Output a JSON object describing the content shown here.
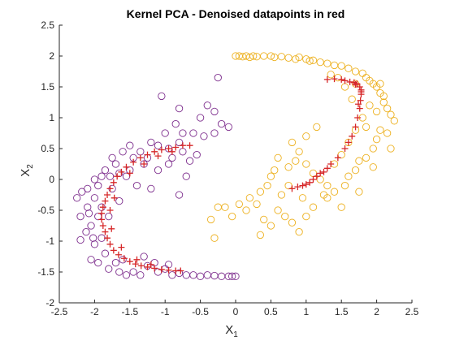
{
  "chart_data": {
    "type": "scatter",
    "title": "Kernel PCA - Denoised datapoints in red",
    "xlabel": {
      "base": "X",
      "sub": "1"
    },
    "ylabel": {
      "base": "X",
      "sub": "2"
    },
    "xlim": [
      -2.5,
      2.5
    ],
    "ylim": [
      -2,
      2.5
    ],
    "xticks": [
      -2.5,
      -2,
      -1.5,
      -1,
      -0.5,
      0,
      0.5,
      1,
      1.5,
      2,
      2.5
    ],
    "xtick_labels": [
      "-2.5",
      "-2",
      "-1.5",
      "-1",
      "-0.5",
      "0",
      "0.5",
      "1",
      "1.5",
      "2",
      "2.5"
    ],
    "yticks": [
      -2,
      -1.5,
      -1,
      -0.5,
      0,
      0.5,
      1,
      1.5,
      2,
      2.5
    ],
    "ytick_labels": [
      "-2",
      "-1.5",
      "-1",
      "-0.5",
      "0",
      "0.5",
      "1",
      "1.5",
      "2",
      "2.5"
    ],
    "grid": false,
    "series": [
      {
        "marker": "circle",
        "color": "#7E2F8E",
        "points": [
          [
            -2.25,
            -0.3
          ],
          [
            -2.18,
            -0.2
          ],
          [
            -2.1,
            -0.45
          ],
          [
            -2.2,
            -0.6
          ],
          [
            -2.05,
            -0.75
          ],
          [
            -2.12,
            -0.85
          ],
          [
            -2.2,
            -0.98
          ],
          [
            -1.95,
            -0.1
          ],
          [
            -2.0,
            -0.3
          ],
          [
            -1.9,
            0.05
          ],
          [
            -1.85,
            0.15
          ],
          [
            -1.75,
            0.35
          ],
          [
            -1.7,
            0.25
          ],
          [
            -1.6,
            0.45
          ],
          [
            -1.5,
            0.55
          ],
          [
            -1.45,
            0.35
          ],
          [
            -1.35,
            0.45
          ],
          [
            -1.3,
            0.25
          ],
          [
            -1.2,
            0.6
          ],
          [
            -1.1,
            0.55
          ],
          [
            -1.0,
            0.75
          ],
          [
            -0.95,
            0.5
          ],
          [
            -0.9,
            0.35
          ],
          [
            -0.85,
            0.9
          ],
          [
            -0.8,
            0.6
          ],
          [
            -0.75,
            0.75
          ],
          [
            -0.6,
            0.75
          ],
          [
            -0.5,
            1.0
          ],
          [
            -0.45,
            0.7
          ],
          [
            -0.3,
            0.75
          ],
          [
            -0.3,
            1.1
          ],
          [
            -0.2,
            0.9
          ],
          [
            -0.1,
            0.85
          ],
          [
            -0.55,
            0.4
          ],
          [
            -0.75,
            0.45
          ],
          [
            -1.05,
            1.35
          ],
          [
            -0.8,
            1.15
          ],
          [
            -0.4,
            1.2
          ],
          [
            -0.25,
            1.65
          ],
          [
            -0.95,
            0.25
          ],
          [
            -1.1,
            0.15
          ],
          [
            -0.7,
            0.05
          ],
          [
            -1.2,
            -0.15
          ],
          [
            -0.8,
            -0.25
          ],
          [
            -1.4,
            -0.1
          ],
          [
            -1.55,
            0.05
          ],
          [
            -1.65,
            0.1
          ],
          [
            -1.9,
            -0.95
          ],
          [
            -2.0,
            -1.05
          ],
          [
            -1.85,
            -1.2
          ],
          [
            -2.05,
            -1.3
          ],
          [
            -1.95,
            -1.35
          ],
          [
            -1.8,
            -1.45
          ],
          [
            -1.7,
            -1.35
          ],
          [
            -1.65,
            -1.5
          ],
          [
            -1.55,
            -1.55
          ],
          [
            -1.45,
            -1.5
          ],
          [
            -1.35,
            -1.55
          ],
          [
            -1.25,
            -1.4
          ],
          [
            -1.15,
            -1.35
          ],
          [
            -1.1,
            -1.5
          ],
          [
            -1.0,
            -1.45
          ],
          [
            -0.9,
            -1.55
          ],
          [
            -0.8,
            -1.52
          ],
          [
            -0.7,
            -1.55
          ],
          [
            -0.6,
            -1.55
          ],
          [
            -0.5,
            -1.57
          ],
          [
            -0.4,
            -1.55
          ],
          [
            -0.3,
            -1.56
          ],
          [
            -0.2,
            -1.57
          ],
          [
            -0.1,
            -1.57
          ],
          [
            -0.05,
            -1.57
          ],
          [
            0.0,
            -1.57
          ],
          [
            -1.95,
            -0.6
          ],
          [
            -2.08,
            -0.55
          ],
          [
            -1.9,
            -0.45
          ],
          [
            -2.02,
            -0.95
          ],
          [
            -1.78,
            0.05
          ],
          [
            -1.6,
            -1.3
          ],
          [
            -1.3,
            -1.25
          ],
          [
            -0.95,
            -1.38
          ],
          [
            -2.1,
            -0.15
          ],
          [
            -1.75,
            -0.15
          ],
          [
            -1.65,
            -0.35
          ],
          [
            -1.5,
            0.15
          ],
          [
            -1.25,
            0.35
          ],
          [
            -0.65,
            0.3
          ],
          [
            -2.0,
            0.0
          ],
          [
            -1.8,
            -0.6
          ]
        ]
      },
      {
        "marker": "circle",
        "color": "#EDB120",
        "points": [
          [
            0.0,
            2.0
          ],
          [
            0.05,
            2.0
          ],
          [
            0.1,
            1.99
          ],
          [
            0.15,
            2.0
          ],
          [
            0.2,
            1.98
          ],
          [
            0.25,
            2.0
          ],
          [
            0.3,
            1.99
          ],
          [
            0.4,
            2.0
          ],
          [
            0.5,
            2.0
          ],
          [
            0.55,
            1.98
          ],
          [
            0.65,
            1.99
          ],
          [
            0.75,
            1.97
          ],
          [
            0.85,
            1.95
          ],
          [
            0.9,
            1.98
          ],
          [
            1.0,
            1.95
          ],
          [
            1.05,
            1.92
          ],
          [
            1.1,
            1.93
          ],
          [
            1.2,
            1.9
          ],
          [
            1.3,
            1.88
          ],
          [
            1.4,
            1.85
          ],
          [
            1.5,
            1.84
          ],
          [
            1.6,
            1.8
          ],
          [
            1.7,
            1.75
          ],
          [
            1.8,
            1.72
          ],
          [
            1.85,
            1.65
          ],
          [
            1.9,
            1.6
          ],
          [
            1.95,
            1.55
          ],
          [
            2.0,
            1.5
          ],
          [
            2.05,
            1.4
          ],
          [
            2.1,
            1.35
          ],
          [
            2.1,
            1.25
          ],
          [
            2.15,
            1.15
          ],
          [
            2.2,
            1.05
          ],
          [
            2.25,
            0.95
          ],
          [
            2.05,
            0.8
          ],
          [
            2.0,
            0.65
          ],
          [
            1.95,
            0.5
          ],
          [
            1.85,
            0.35
          ],
          [
            1.75,
            0.3
          ],
          [
            1.7,
            0.15
          ],
          [
            1.6,
            0.05
          ],
          [
            1.55,
            -0.1
          ],
          [
            1.4,
            -0.2
          ],
          [
            1.3,
            -0.3
          ],
          [
            1.2,
            0.0
          ],
          [
            1.1,
            0.1
          ],
          [
            1.0,
            0.25
          ],
          [
            0.9,
            0.45
          ],
          [
            0.85,
            0.3
          ],
          [
            0.75,
            0.2
          ],
          [
            0.6,
            0.35
          ],
          [
            0.55,
            0.15
          ],
          [
            0.5,
            0.05
          ],
          [
            0.45,
            -0.1
          ],
          [
            0.35,
            -0.2
          ],
          [
            0.3,
            -0.4
          ],
          [
            0.2,
            -0.3
          ],
          [
            0.15,
            -0.5
          ],
          [
            0.05,
            -0.4
          ],
          [
            -0.05,
            -0.6
          ],
          [
            -0.15,
            -0.45
          ],
          [
            -0.25,
            -0.45
          ],
          [
            -0.35,
            -0.65
          ],
          [
            -0.3,
            -0.95
          ],
          [
            0.35,
            -0.9
          ],
          [
            0.5,
            -0.75
          ],
          [
            0.6,
            -0.5
          ],
          [
            0.7,
            -0.6
          ],
          [
            0.8,
            -0.7
          ],
          [
            0.9,
            -0.85
          ],
          [
            1.0,
            -0.6
          ],
          [
            1.1,
            -0.45
          ],
          [
            1.25,
            -0.25
          ],
          [
            1.4,
            0.25
          ],
          [
            1.5,
            0.4
          ],
          [
            1.6,
            0.6
          ],
          [
            1.7,
            0.8
          ],
          [
            1.8,
            1.0
          ],
          [
            1.9,
            1.2
          ],
          [
            2.0,
            1.1
          ],
          [
            1.85,
            0.85
          ],
          [
            1.65,
            1.3
          ],
          [
            1.55,
            1.5
          ],
          [
            1.45,
            1.65
          ],
          [
            2.15,
            0.75
          ],
          [
            2.2,
            0.5
          ],
          [
            1.95,
            0.2
          ],
          [
            1.75,
            -0.2
          ],
          [
            1.5,
            -0.45
          ],
          [
            1.3,
            -0.1
          ],
          [
            0.8,
            0.6
          ],
          [
            1.0,
            0.7
          ],
          [
            1.15,
            0.85
          ],
          [
            0.65,
            -0.25
          ],
          [
            0.95,
            -0.3
          ],
          [
            2.05,
            1.55
          ],
          [
            1.7,
            1.55
          ],
          [
            1.35,
            1.7
          ],
          [
            0.75,
            -0.1
          ],
          [
            0.4,
            -0.65
          ]
        ]
      },
      {
        "marker": "plus",
        "color": "#D62728",
        "points": [
          [
            -0.65,
            0.55
          ],
          [
            -0.75,
            0.55
          ],
          [
            -0.85,
            0.52
          ],
          [
            -0.95,
            0.5
          ],
          [
            -1.05,
            0.48
          ],
          [
            -1.15,
            0.45
          ],
          [
            -1.25,
            0.4
          ],
          [
            -1.35,
            0.35
          ],
          [
            -1.45,
            0.28
          ],
          [
            -1.55,
            0.2
          ],
          [
            -1.62,
            0.12
          ],
          [
            -1.68,
            0.05
          ],
          [
            -1.73,
            -0.05
          ],
          [
            -1.78,
            -0.15
          ],
          [
            -1.82,
            -0.25
          ],
          [
            -1.85,
            -0.35
          ],
          [
            -1.88,
            -0.45
          ],
          [
            -1.9,
            -0.55
          ],
          [
            -1.9,
            -0.65
          ],
          [
            -1.88,
            -0.75
          ],
          [
            -1.85,
            -0.85
          ],
          [
            -1.82,
            -0.95
          ],
          [
            -1.78,
            -1.05
          ],
          [
            -1.73,
            -1.15
          ],
          [
            -1.66,
            -1.22
          ],
          [
            -1.58,
            -1.28
          ],
          [
            -1.5,
            -1.33
          ],
          [
            -1.42,
            -1.37
          ],
          [
            -1.34,
            -1.4
          ],
          [
            -1.25,
            -1.42
          ],
          [
            -1.15,
            -1.44
          ],
          [
            -1.05,
            -1.46
          ],
          [
            -0.95,
            -1.47
          ],
          [
            -0.85,
            -1.48
          ],
          [
            -0.78,
            -1.48
          ],
          [
            -1.72,
            -0.3
          ],
          [
            -1.78,
            -0.5
          ],
          [
            -1.76,
            -0.8
          ],
          [
            -1.62,
            -1.1
          ],
          [
            -1.4,
            -1.3
          ],
          [
            -1.2,
            -1.38
          ],
          [
            -1.5,
            0.1
          ],
          [
            -1.3,
            0.25
          ],
          [
            -1.1,
            0.38
          ],
          [
            -0.9,
            0.45
          ],
          [
            0.8,
            -0.15
          ],
          [
            0.88,
            -0.12
          ],
          [
            0.95,
            -0.1
          ],
          [
            1.0,
            -0.08
          ],
          [
            1.05,
            -0.05
          ],
          [
            1.1,
            0.0
          ],
          [
            1.15,
            0.05
          ],
          [
            1.2,
            0.1
          ],
          [
            1.25,
            0.12
          ],
          [
            1.3,
            0.18
          ],
          [
            1.35,
            0.25
          ],
          [
            1.45,
            0.35
          ],
          [
            1.55,
            0.5
          ],
          [
            1.6,
            0.6
          ],
          [
            1.65,
            0.7
          ],
          [
            1.7,
            0.85
          ],
          [
            1.73,
            1.0
          ],
          [
            1.76,
            1.15
          ],
          [
            1.77,
            1.28
          ],
          [
            1.78,
            1.38
          ],
          [
            1.78,
            1.45
          ],
          [
            1.76,
            1.5
          ],
          [
            1.72,
            1.55
          ],
          [
            1.68,
            1.57
          ],
          [
            1.62,
            1.58
          ],
          [
            1.55,
            1.6
          ],
          [
            1.5,
            1.62
          ],
          [
            1.4,
            1.63
          ],
          [
            1.3,
            1.62
          ],
          [
            1.74,
            1.22
          ],
          [
            1.78,
            1.42
          ],
          [
            1.7,
            1.54
          ]
        ]
      }
    ]
  }
}
